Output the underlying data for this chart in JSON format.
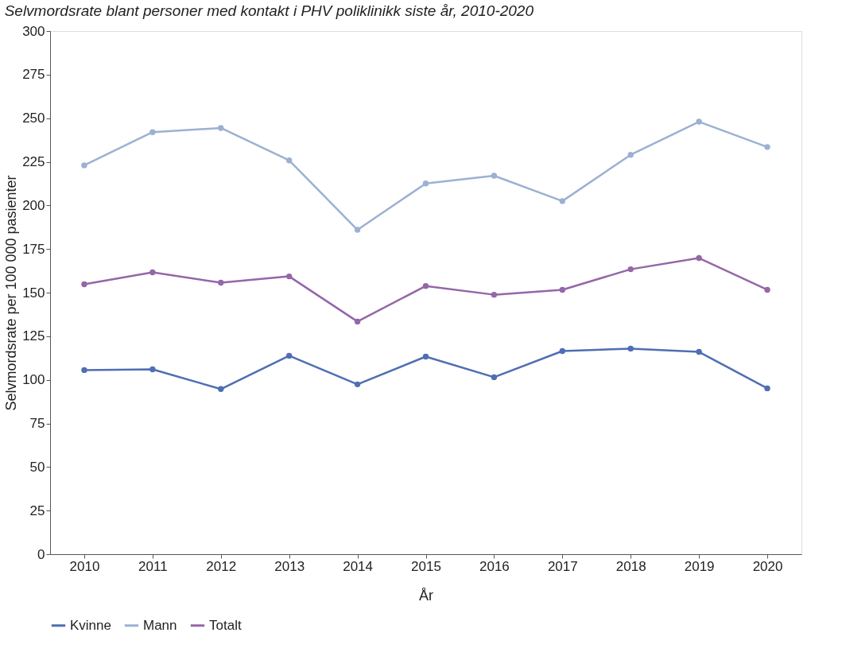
{
  "chart_data": {
    "type": "line",
    "title": "Selvmordsrate blant personer med kontakt i PHV poliklinikk siste år, 2010-2020",
    "xlabel": "År",
    "ylabel": "Selvmordsrate per 100 000 pasienter",
    "categories": [
      "2010",
      "2011",
      "2012",
      "2013",
      "2014",
      "2015",
      "2016",
      "2017",
      "2018",
      "2019",
      "2020"
    ],
    "series": [
      {
        "name": "Kvinne",
        "color": "#4f6eb3",
        "values": [
          105.6,
          106,
          94.7,
          113.8,
          97.4,
          113.3,
          101.5,
          116.5,
          117.9,
          116,
          95.1
        ]
      },
      {
        "name": "Mann",
        "color": "#9cb1d2",
        "values": [
          223,
          242,
          244.4,
          225.8,
          186,
          212.6,
          217,
          202.5,
          229,
          248,
          233.5
        ]
      },
      {
        "name": "Totalt",
        "color": "#9467a8",
        "values": [
          154.8,
          161.6,
          155.7,
          159.3,
          133.4,
          153.8,
          148.8,
          151.6,
          163.4,
          169.8,
          151.6
        ]
      }
    ],
    "ylim": [
      0,
      300
    ],
    "yticks": [
      0,
      25,
      50,
      75,
      100,
      125,
      150,
      175,
      200,
      225,
      250,
      275,
      300
    ],
    "grid": false,
    "legend": "bottom",
    "marker": "circle",
    "line_style": "solid"
  }
}
